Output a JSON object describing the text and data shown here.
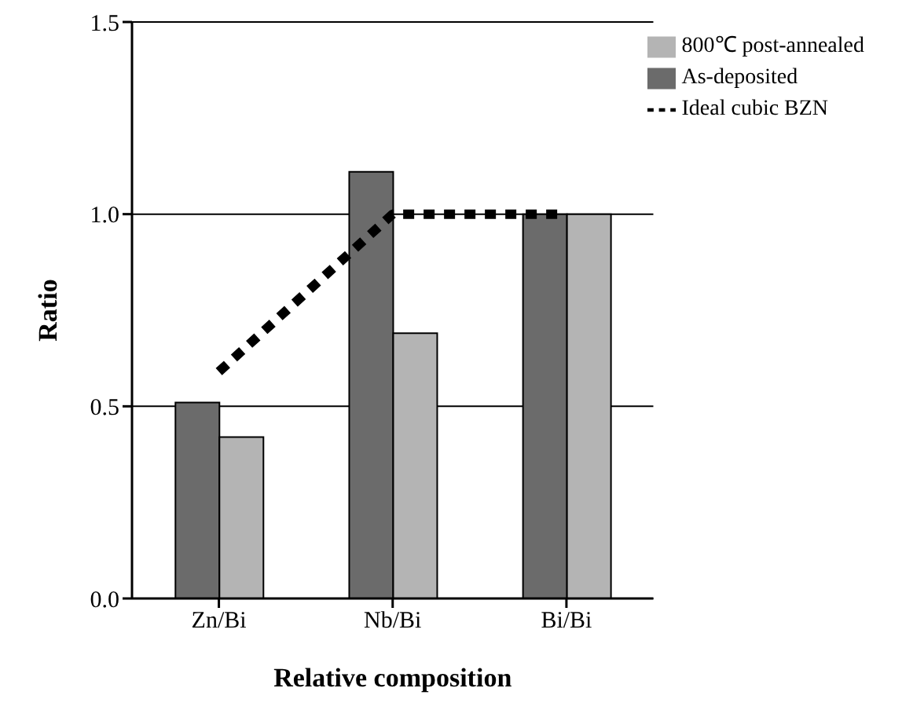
{
  "chart_data": {
    "type": "bar",
    "xlabel": "Relative composition",
    "ylabel": "Ratio",
    "categories": [
      "Zn/Bi",
      "Nb/Bi",
      "Bi/Bi"
    ],
    "series": [
      {
        "name": "Ideal cubic BZN",
        "type": "line",
        "color": "#000000",
        "values": [
          0.59,
          1.0,
          1.0
        ],
        "line_style": "dotted",
        "marker": "none"
      },
      {
        "name": "As-deposited",
        "color": "#6b6b6b",
        "values": [
          0.51,
          1.11,
          1.0
        ]
      },
      {
        "name": "800℃  post-annealed",
        "color": "#b4b4b4",
        "values": [
          0.42,
          0.69,
          1.0
        ]
      }
    ],
    "ylim": [
      0,
      1.5
    ],
    "yticks": [
      {
        "value": 0,
        "label": "0.0"
      },
      0.5,
      {
        "value": 1,
        "label": "1.0"
      },
      1.5
    ],
    "grid": "y",
    "legend": "top right"
  }
}
